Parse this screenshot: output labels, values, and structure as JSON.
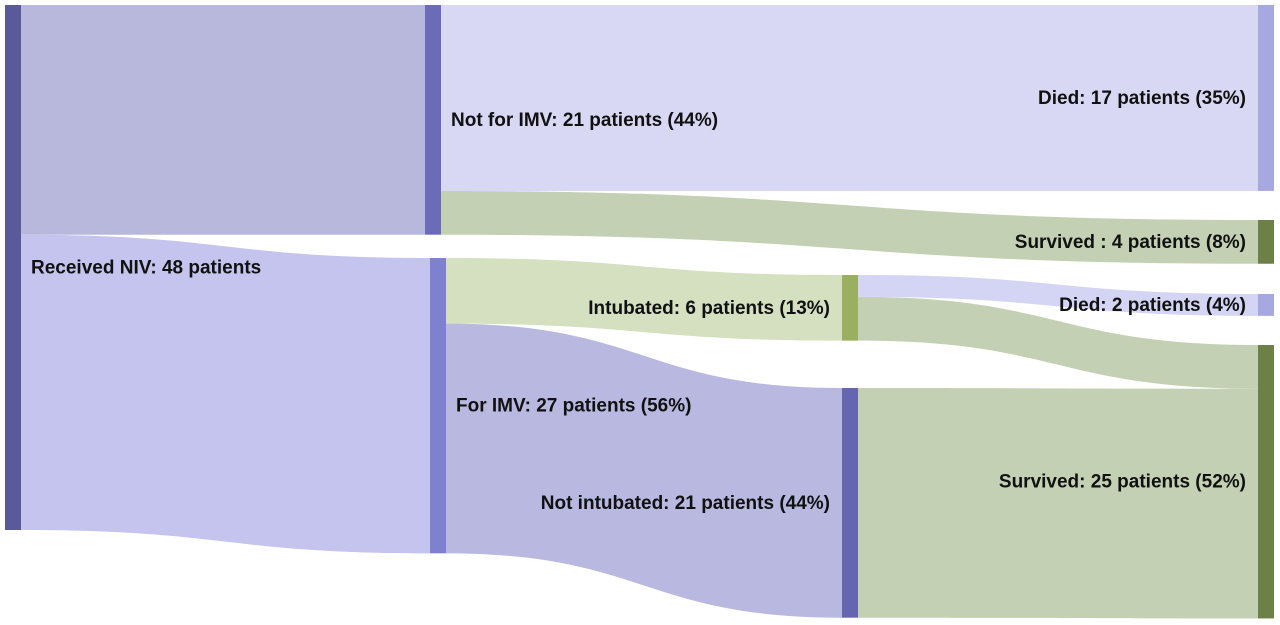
{
  "chart_data": {
    "type": "sankey",
    "nodes": [
      {
        "label": "Received NIV: 48 patients",
        "value": 48,
        "color": "#5a5a9a"
      },
      {
        "label": "Not for IMV: 21 patients (44%)",
        "value": 21,
        "color": "#6b6bb8"
      },
      {
        "label": "For IMV: 27 patients (56%)",
        "value": 27,
        "color": "#8080d0"
      },
      {
        "label": "Intubated: 6 patients (13%)",
        "value": 6,
        "color": "#9ab060"
      },
      {
        "label": "Not intubated: 21 patients (44%)",
        "value": 21,
        "color": "#6666b0"
      },
      {
        "label": "Died: 17 patients (35%)",
        "value": 17,
        "color": "#a8a8e0"
      },
      {
        "label": "Survived : 4 patients (8%)",
        "value": 4,
        "color": "#6d8048"
      },
      {
        "label": "Died: 2 patients (4%)",
        "value": 2,
        "color": "#a8a8e0"
      },
      {
        "label": "Survived: 25 patients (52%)",
        "value": 25,
        "color": "#6d8048"
      }
    ],
    "links": [
      {
        "source": 0,
        "target": 1,
        "value": 21,
        "color": "#b8b8dc"
      },
      {
        "source": 0,
        "target": 2,
        "value": 27,
        "color": "#c4c4ee"
      },
      {
        "source": 1,
        "target": 5,
        "value": 17,
        "color": "#d8d8f4"
      },
      {
        "source": 1,
        "target": 6,
        "value": 4,
        "color": "#c4d0b4"
      },
      {
        "source": 2,
        "target": 3,
        "value": 6,
        "color": "#d4e0c0"
      },
      {
        "source": 2,
        "target": 4,
        "value": 21,
        "color": "#b8b8e0"
      },
      {
        "source": 3,
        "target": 7,
        "value": 2,
        "color": "#d4d4f4"
      },
      {
        "source": 3,
        "target": 8,
        "value": 4,
        "color": "#c4d0b4"
      },
      {
        "source": 4,
        "target": 8,
        "value": 21,
        "color": "#c4d0b4"
      }
    ]
  }
}
